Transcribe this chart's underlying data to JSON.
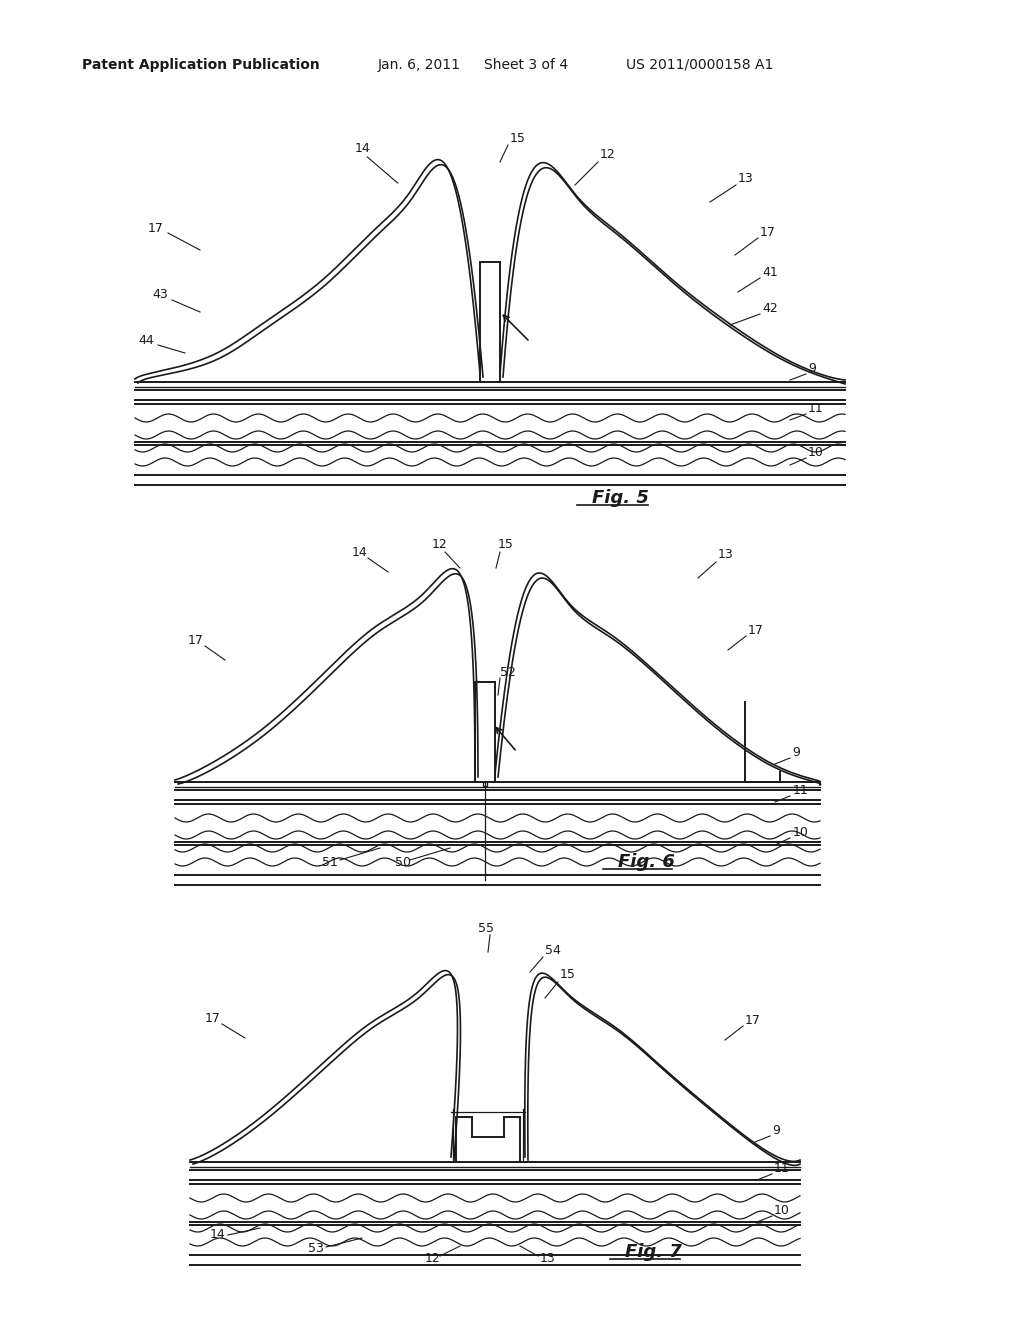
{
  "bg_color": "#ffffff",
  "line_color": "#1a1a1a",
  "header_text": "Patent Application Publication",
  "header_date": "Jan. 6, 2011",
  "header_sheet": "Sheet 3 of 4",
  "header_patent": "US 2011/0000158 A1",
  "fig5_label": "Fig. 5",
  "fig6_label": "Fig. 6",
  "fig7_label": "Fig. 7"
}
